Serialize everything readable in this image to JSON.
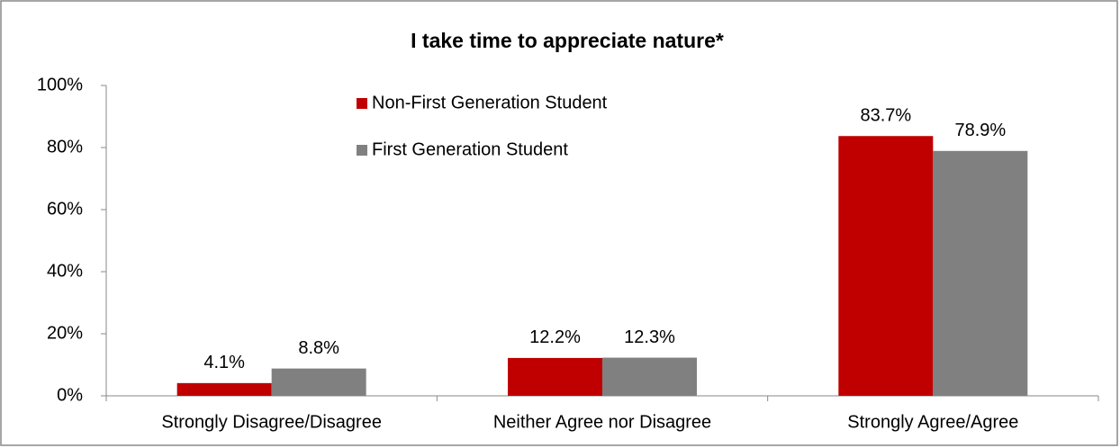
{
  "chart_data": {
    "type": "bar",
    "title": "I take time to appreciate nature*",
    "categories": [
      "Strongly Disagree/Disagree",
      "Neither Agree nor Disagree",
      "Strongly Agree/Agree"
    ],
    "series": [
      {
        "name": "Non-First Generation Student",
        "color": "#c00000",
        "values": [
          4.1,
          12.2,
          83.7
        ],
        "value_labels": [
          "4.1%",
          "12.2%",
          "83.7%"
        ]
      },
      {
        "name": "First Generation Student",
        "color": "#808080",
        "values": [
          8.8,
          12.3,
          78.9
        ],
        "value_labels": [
          "8.8%",
          "12.3%",
          "78.9%"
        ]
      }
    ],
    "ylim": [
      0,
      100
    ],
    "yticks": [
      {
        "value": 0,
        "label": "0%"
      },
      {
        "value": 20,
        "label": "20%"
      },
      {
        "value": 40,
        "label": "40%"
      },
      {
        "value": 60,
        "label": "60%"
      },
      {
        "value": 80,
        "label": "80%"
      },
      {
        "value": 100,
        "label": "100%"
      }
    ],
    "grid": false,
    "legend": "top-left"
  }
}
